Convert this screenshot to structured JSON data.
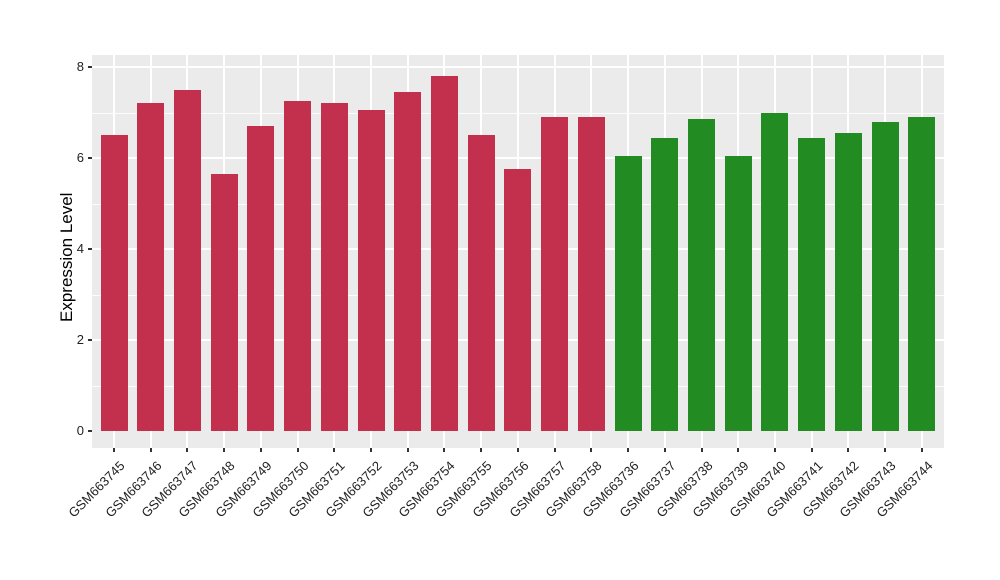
{
  "chart_data": {
    "type": "bar",
    "title": "",
    "xlabel": "",
    "ylabel": "Expression Level",
    "ylim": [
      0,
      8.3
    ],
    "yticks": [
      0,
      2,
      4,
      6,
      8
    ],
    "grid": "horizontal white lines at every integer (thicker at even values), vertical white line at each category; grey panel background; no legend",
    "legend_position": "none",
    "categories": [
      "GSM663745",
      "GSM663746",
      "GSM663747",
      "GSM663748",
      "GSM663749",
      "GSM663750",
      "GSM663751",
      "GSM663752",
      "GSM663753",
      "GSM663754",
      "GSM663755",
      "GSM663756",
      "GSM663757",
      "GSM663758",
      "GSM663736",
      "GSM663737",
      "GSM663738",
      "GSM663739",
      "GSM663740",
      "GSM663741",
      "GSM663742",
      "GSM663743",
      "GSM663744"
    ],
    "values": [
      6.5,
      7.2,
      7.5,
      5.65,
      6.7,
      7.25,
      7.2,
      7.05,
      7.45,
      7.8,
      6.5,
      5.75,
      6.9,
      6.9,
      6.05,
      6.45,
      6.85,
      6.05,
      7.0,
      6.45,
      6.55,
      6.8,
      6.9
    ],
    "bar_group_index": [
      0,
      0,
      0,
      0,
      0,
      0,
      0,
      0,
      0,
      0,
      0,
      0,
      0,
      0,
      1,
      1,
      1,
      1,
      1,
      1,
      1,
      1,
      1
    ],
    "group_colors": [
      "#C3304D",
      "#228B22"
    ]
  },
  "style": {
    "panel_background": "#EBEBEB",
    "grid_color": "#FFFFFF",
    "tick_color": "#333333",
    "tick_label_color": "#1f1f1f",
    "axis_title_color": "#000000",
    "figure_background": "#FFFFFF"
  }
}
